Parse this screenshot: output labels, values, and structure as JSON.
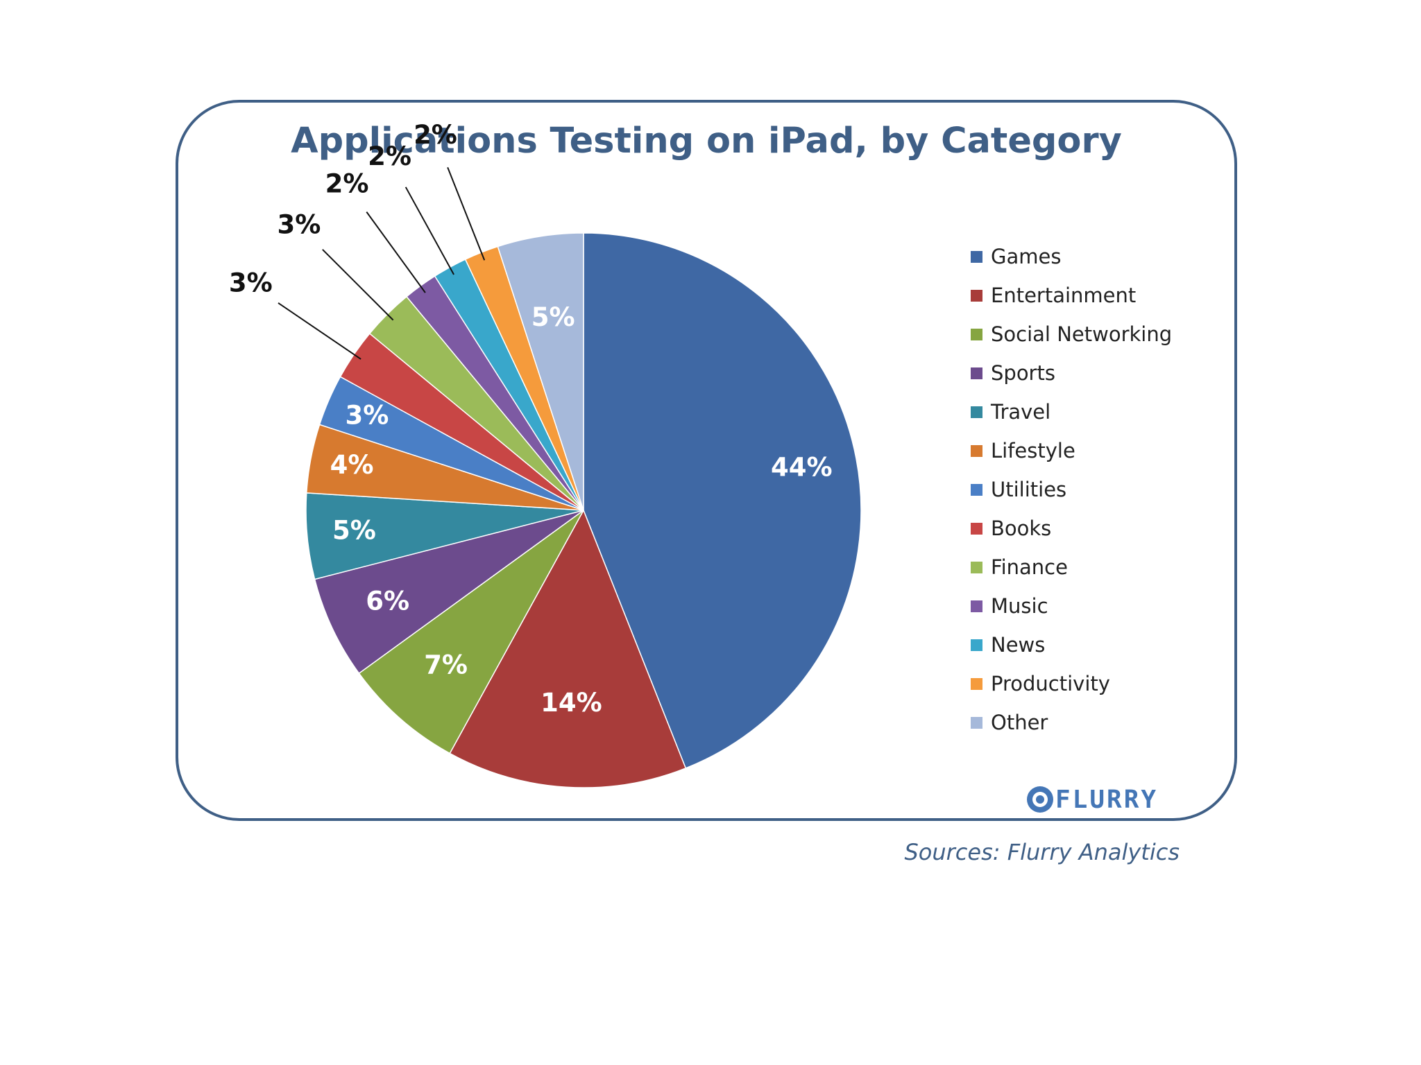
{
  "chart_data": {
    "type": "pie",
    "title": "Applications Testing on iPad, by Category",
    "categories": [
      "Games",
      "Entertainment",
      "Social Networking",
      "Sports",
      "Travel",
      "Lifestyle",
      "Utilities",
      "Books",
      "Finance",
      "Music",
      "News",
      "Productivity",
      "Other"
    ],
    "values": [
      44,
      14,
      7,
      6,
      5,
      4,
      3,
      3,
      3,
      2,
      2,
      2,
      5
    ],
    "value_labels": [
      "44%",
      "14%",
      "7%",
      "6%",
      "5%",
      "4%",
      "3%",
      "3%",
      "3%",
      "2%",
      "2%",
      "2%",
      "5%"
    ],
    "colors": [
      "#3f68a4",
      "#a83c3a",
      "#86a541",
      "#6c4b8d",
      "#34899f",
      "#d77a2f",
      "#4a7fc6",
      "#c84645",
      "#9bbb59",
      "#7d5aa3",
      "#39a7cb",
      "#f59b3c",
      "#a6b9da"
    ],
    "legend": "right",
    "start_angle": 0,
    "direction": "clockwise"
  },
  "logo": {
    "text": "FLURRY"
  },
  "source": "Sources: Flurry Analytics"
}
